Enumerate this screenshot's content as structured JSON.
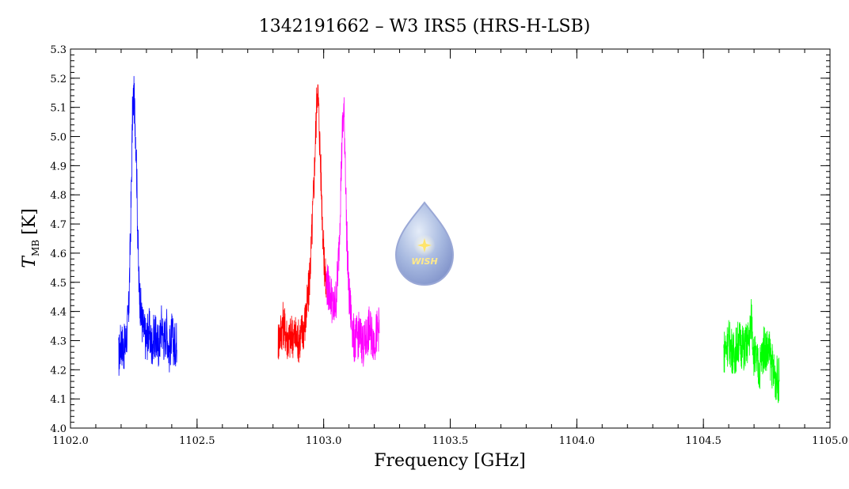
{
  "chart_data": {
    "type": "line",
    "title": "1342191662 – W3 IRS5 (HRS-H-LSB)",
    "xlabel": "Frequency [GHz]",
    "ylabel_main": "T",
    "ylabel_sub": "MB",
    "ylabel_unit": "[K]",
    "xlim": [
      1102.0,
      1105.0
    ],
    "ylim": [
      4.0,
      5.3
    ],
    "xticks": [
      "1102.0",
      "1102.5",
      "1103.0",
      "1103.5",
      "1104.0",
      "1104.5",
      "1105.0"
    ],
    "yticks": [
      "4.0",
      "4.1",
      "4.2",
      "4.3",
      "4.4",
      "4.5",
      "4.6",
      "4.7",
      "4.8",
      "4.9",
      "5.0",
      "5.1",
      "5.2",
      "5.3"
    ],
    "grid": false,
    "series": [
      {
        "color": "#0000ff",
        "x": [
          1102.19,
          1102.2,
          1102.21,
          1102.22,
          1102.23,
          1102.235,
          1102.24,
          1102.245,
          1102.25,
          1102.255,
          1102.26,
          1102.265,
          1102.27,
          1102.28,
          1102.29,
          1102.3,
          1102.31,
          1102.32,
          1102.33,
          1102.34,
          1102.35,
          1102.36,
          1102.37,
          1102.38,
          1102.39,
          1102.4,
          1102.41,
          1102.42
        ],
        "y": [
          4.24,
          4.3,
          4.27,
          4.3,
          4.4,
          4.58,
          4.8,
          5.08,
          5.14,
          5.06,
          4.95,
          4.7,
          4.5,
          4.38,
          4.33,
          4.3,
          4.34,
          4.28,
          4.32,
          4.3,
          4.28,
          4.36,
          4.3,
          4.34,
          4.26,
          4.32,
          4.28,
          4.3
        ]
      },
      {
        "color": "#ff0000",
        "x": [
          1102.82,
          1102.84,
          1102.86,
          1102.88,
          1102.9,
          1102.92,
          1102.93,
          1102.94,
          1102.95,
          1102.96,
          1102.97,
          1102.975,
          1102.98,
          1102.99,
          1103.0,
          1103.01
        ],
        "y": [
          4.3,
          4.36,
          4.3,
          4.32,
          4.3,
          4.34,
          4.38,
          4.46,
          4.6,
          4.8,
          5.05,
          5.18,
          5.1,
          4.85,
          4.6,
          4.48
        ]
      },
      {
        "color": "#ff00ff",
        "x": [
          1103.01,
          1103.03,
          1103.04,
          1103.05,
          1103.06,
          1103.07,
          1103.075,
          1103.08,
          1103.085,
          1103.09,
          1103.1,
          1103.12,
          1103.14,
          1103.16,
          1103.18,
          1103.2,
          1103.22
        ],
        "y": [
          4.5,
          4.45,
          4.4,
          4.45,
          4.6,
          4.9,
          5.04,
          5.08,
          4.95,
          4.7,
          4.45,
          4.3,
          4.32,
          4.28,
          4.34,
          4.3,
          4.35
        ]
      },
      {
        "color": "#00ff00",
        "x": [
          1104.58,
          1104.6,
          1104.62,
          1104.64,
          1104.66,
          1104.68,
          1104.69,
          1104.7,
          1104.72,
          1104.74,
          1104.76,
          1104.78,
          1104.8
        ],
        "y": [
          4.26,
          4.3,
          4.25,
          4.3,
          4.27,
          4.3,
          4.38,
          4.25,
          4.2,
          4.28,
          4.26,
          4.18,
          4.16
        ]
      }
    ],
    "logo_text": "WISH"
  }
}
